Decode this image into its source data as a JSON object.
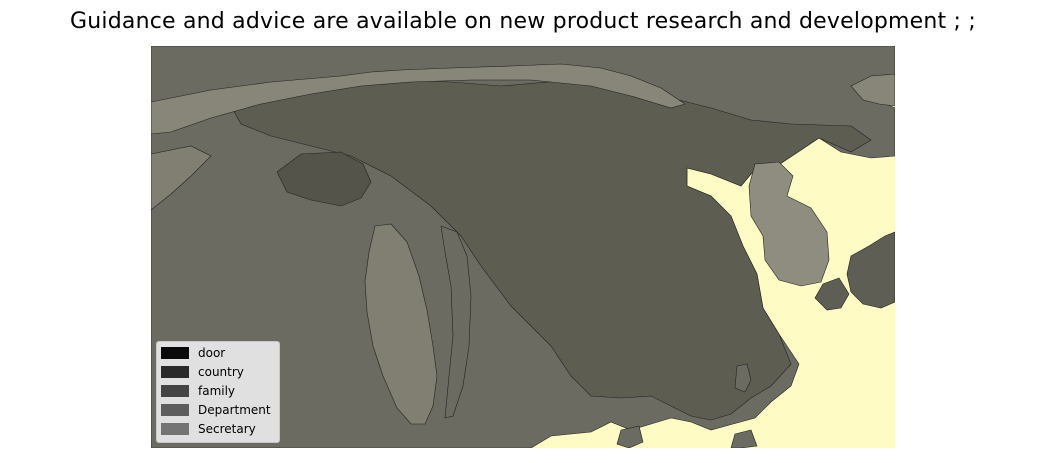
{
  "title": "Guidance and advice are available on new product research and development ; ;",
  "map": {
    "colors": {
      "ocean": "#fffbc4",
      "mainland": "#5e5d52",
      "west_region": "#6b6b62",
      "north_strip": "#878678",
      "peninsula": "#807f72",
      "korea": "#8e8d80",
      "plateau": "#55544a",
      "east_islands": "#5f5e54"
    }
  },
  "legend": {
    "items": [
      {
        "label": "door",
        "color": "#0a0a0a"
      },
      {
        "label": "country",
        "color": "#2a2a2a"
      },
      {
        "label": "family",
        "color": "#444444"
      },
      {
        "label": "Department",
        "color": "#5d5d5d"
      },
      {
        "label": "Secretary",
        "color": "#747474"
      }
    ]
  }
}
